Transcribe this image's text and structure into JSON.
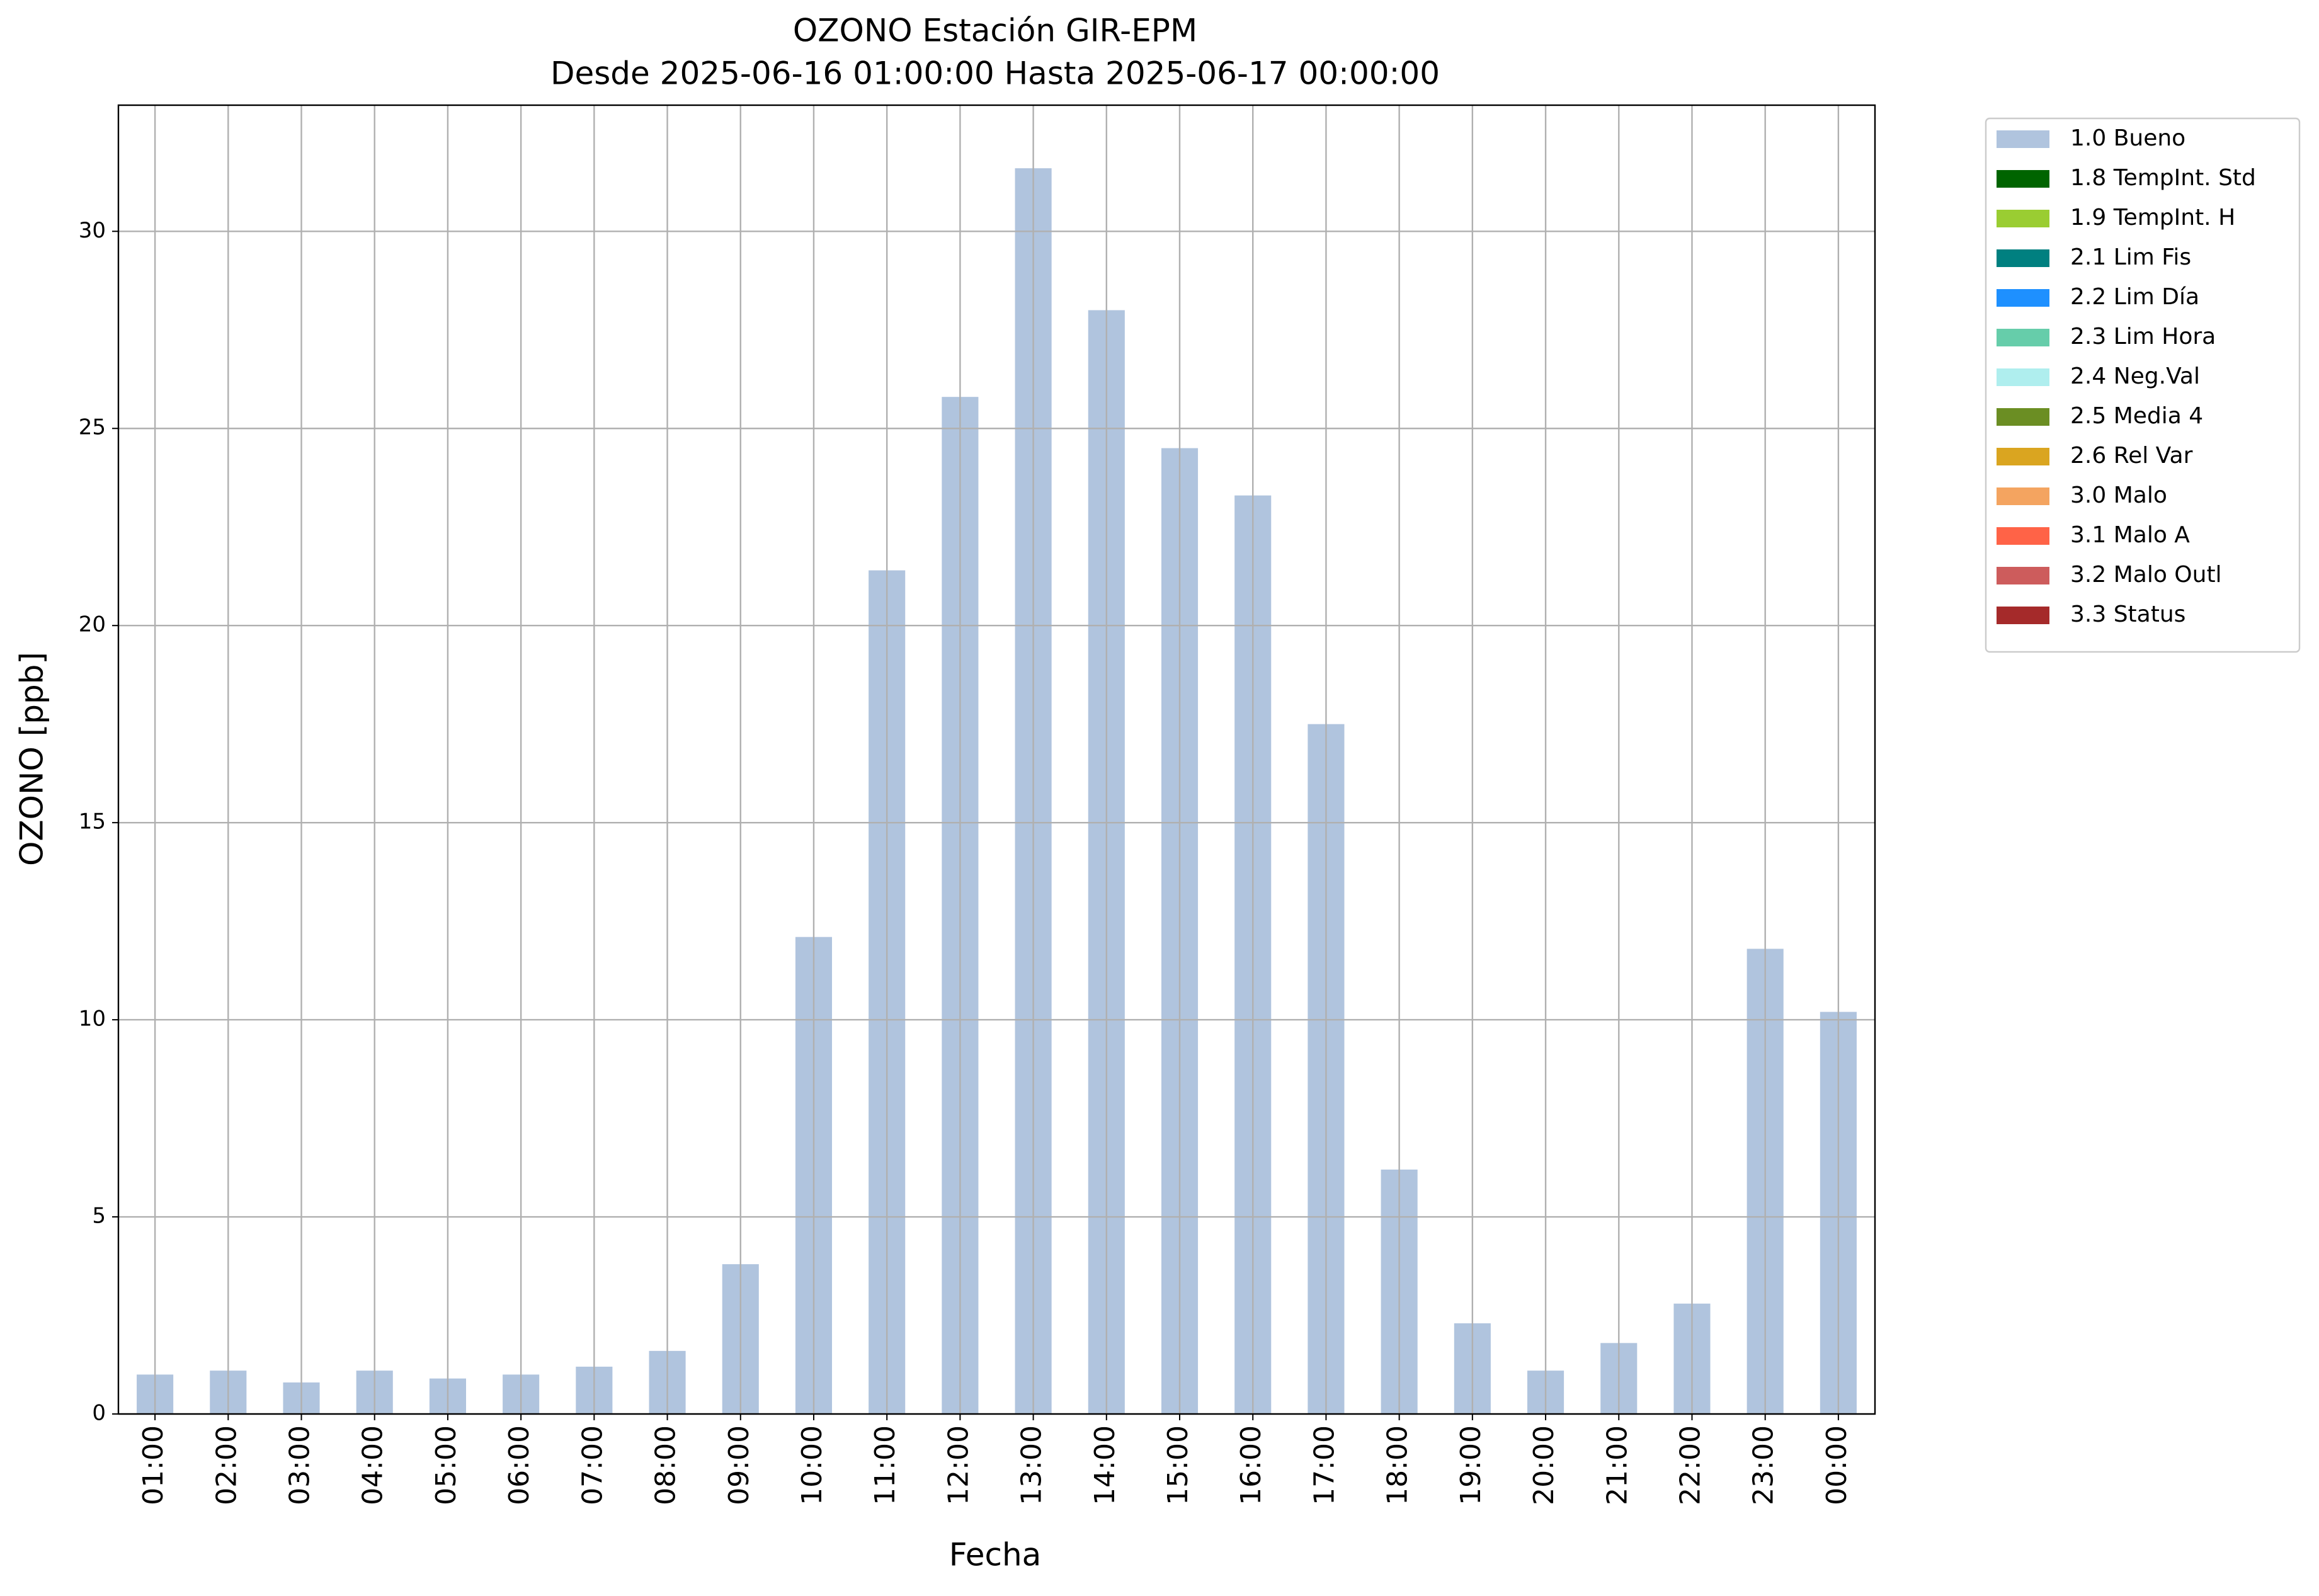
{
  "chart_data": {
    "type": "bar",
    "stacked": true,
    "title": "OZONO Estación GIR-EPM",
    "subtitle": "Desde 2025-06-16 01:00:00 Hasta 2025-06-17 00:00:00",
    "x_label": "Fecha",
    "y_label": "OZONO [ppb]",
    "categories": [
      "01:00",
      "02:00",
      "03:00",
      "04:00",
      "05:00",
      "06:00",
      "07:00",
      "08:00",
      "09:00",
      "10:00",
      "11:00",
      "12:00",
      "13:00",
      "14:00",
      "15:00",
      "16:00",
      "17:00",
      "18:00",
      "19:00",
      "20:00",
      "21:00",
      "22:00",
      "23:00",
      "00:00"
    ],
    "series": [
      {
        "name": "1.0 Bueno",
        "color": "#b0c4de",
        "values": [
          1.0,
          1.1,
          0.8,
          1.1,
          0.9,
          1.0,
          1.2,
          1.6,
          3.8,
          12.1,
          21.4,
          25.8,
          31.6,
          28.0,
          24.5,
          23.3,
          17.5,
          6.2,
          2.3,
          1.1,
          1.8,
          2.8,
          11.8,
          10.2
        ]
      },
      {
        "name": "1.8 TempInt. Std",
        "color": "#006400",
        "values": [
          0,
          0,
          0,
          0,
          0,
          0,
          0,
          0,
          0,
          0,
          0,
          0,
          0,
          0,
          0,
          0,
          0,
          0,
          0,
          0,
          0,
          0,
          0,
          0
        ]
      },
      {
        "name": "1.9 TempInt. H",
        "color": "#9acd32",
        "values": [
          0,
          0,
          0,
          0,
          0,
          0,
          0,
          0,
          0,
          0,
          0,
          0,
          0,
          0,
          0,
          0,
          0,
          0,
          0,
          0,
          0,
          0,
          0,
          0
        ]
      },
      {
        "name": "2.1 Lim Fis",
        "color": "#008080",
        "values": [
          0,
          0,
          0,
          0,
          0,
          0,
          0,
          0,
          0,
          0,
          0,
          0,
          0,
          0,
          0,
          0,
          0,
          0,
          0,
          0,
          0,
          0,
          0,
          0
        ]
      },
      {
        "name": "2.2 Lim Día",
        "color": "#1e90ff",
        "values": [
          0,
          0,
          0,
          0,
          0,
          0,
          0,
          0,
          0,
          0,
          0,
          0,
          0,
          0,
          0,
          0,
          0,
          0,
          0,
          0,
          0,
          0,
          0,
          0
        ]
      },
      {
        "name": "2.3 Lim Hora",
        "color": "#66cdaa",
        "values": [
          0,
          0,
          0,
          0,
          0,
          0,
          0,
          0,
          0,
          0,
          0,
          0,
          0,
          0,
          0,
          0,
          0,
          0,
          0,
          0,
          0,
          0,
          0,
          0
        ]
      },
      {
        "name": "2.4 Neg.Val",
        "color": "#afeeee",
        "values": [
          0,
          0,
          0,
          0,
          0,
          0,
          0,
          0,
          0,
          0,
          0,
          0,
          0,
          0,
          0,
          0,
          0,
          0,
          0,
          0,
          0,
          0,
          0,
          0
        ]
      },
      {
        "name": "2.5 Media 4",
        "color": "#6b8e23",
        "values": [
          0,
          0,
          0,
          0,
          0,
          0,
          0,
          0,
          0,
          0,
          0,
          0,
          0,
          0,
          0,
          0,
          0,
          0,
          0,
          0,
          0,
          0,
          0,
          0
        ]
      },
      {
        "name": "2.6 Rel Var",
        "color": "#daa520",
        "values": [
          0,
          0,
          0,
          0,
          0,
          0,
          0,
          0,
          0,
          0,
          0,
          0,
          0,
          0,
          0,
          0,
          0,
          0,
          0,
          0,
          0,
          0,
          0,
          0
        ]
      },
      {
        "name": "3.0 Malo",
        "color": "#f4a460",
        "values": [
          0,
          0,
          0,
          0,
          0,
          0,
          0,
          0,
          0,
          0,
          0,
          0,
          0,
          0,
          0,
          0,
          0,
          0,
          0,
          0,
          0,
          0,
          0,
          0
        ]
      },
      {
        "name": "3.1 Malo A",
        "color": "#ff6347",
        "values": [
          0,
          0,
          0,
          0,
          0,
          0,
          0,
          0,
          0,
          0,
          0,
          0,
          0,
          0,
          0,
          0,
          0,
          0,
          0,
          0,
          0,
          0,
          0,
          0
        ]
      },
      {
        "name": "3.2 Malo Outl",
        "color": "#cd5c5c",
        "values": [
          0,
          0,
          0,
          0,
          0,
          0,
          0,
          0,
          0,
          0,
          0,
          0,
          0,
          0,
          0,
          0,
          0,
          0,
          0,
          0,
          0,
          0,
          0,
          0
        ]
      },
      {
        "name": "3.3 Status",
        "color": "#a52a2a",
        "values": [
          0,
          0,
          0,
          0,
          0,
          0,
          0,
          0,
          0,
          0,
          0,
          0,
          0,
          0,
          0,
          0,
          0,
          0,
          0,
          0,
          0,
          0,
          0,
          0
        ]
      }
    ],
    "ylim": [
      0,
      33.2
    ],
    "yticks": [
      0,
      5,
      10,
      15,
      20,
      25,
      30
    ],
    "grid": true,
    "legend": "outside-upper-right"
  }
}
